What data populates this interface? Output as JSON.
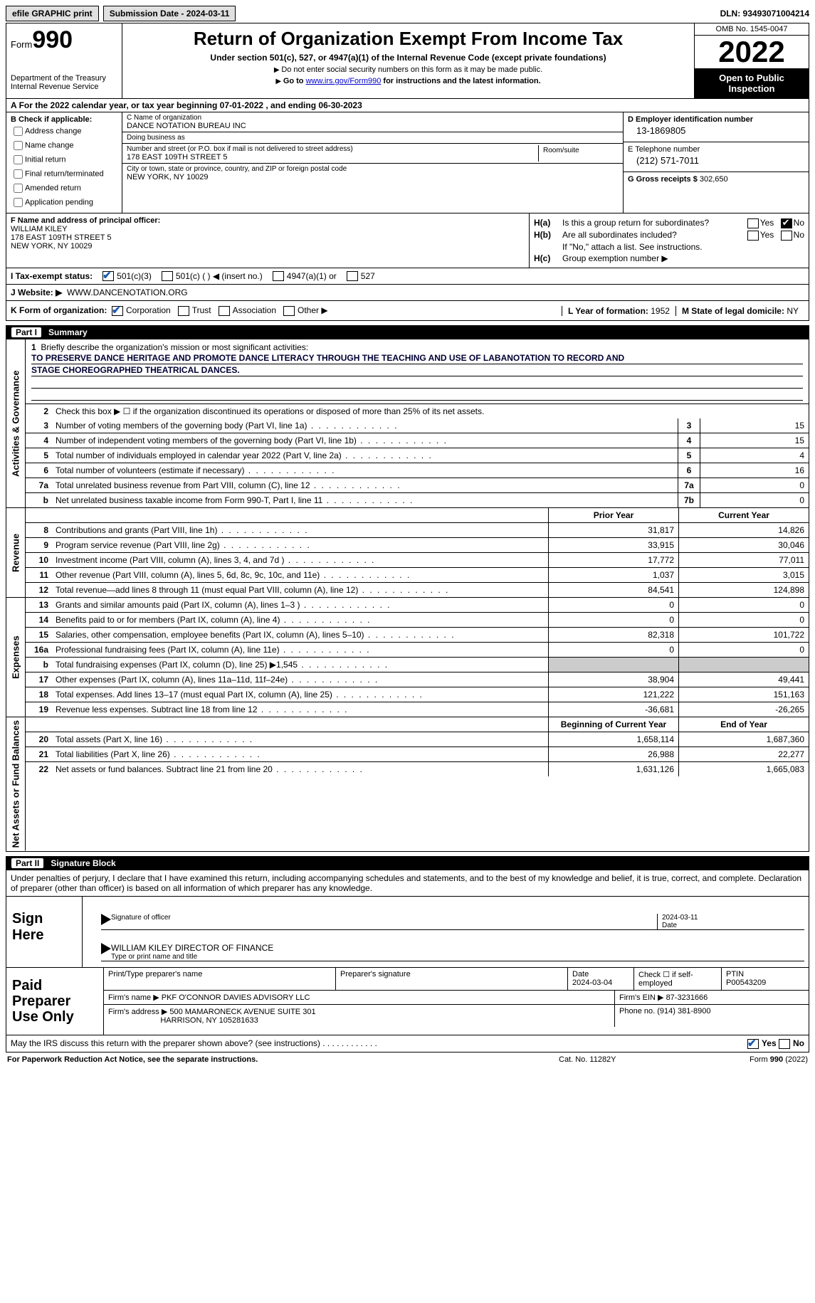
{
  "topbar": {
    "efile": "efile GRAPHIC print",
    "sub_label": "Submission Date - 2024-03-11",
    "dln": "DLN: 93493071004214"
  },
  "header": {
    "form_word": "Form",
    "form_num": "990",
    "dept": "Department of the Treasury",
    "irs": "Internal Revenue Service",
    "title": "Return of Organization Exempt From Income Tax",
    "subtitle": "Under section 501(c), 527, or 4947(a)(1) of the Internal Revenue Code (except private foundations)",
    "note1": "Do not enter social security numbers on this form as it may be made public.",
    "note2_pre": "Go to ",
    "note2_link": "www.irs.gov/Form990",
    "note2_post": " for instructions and the latest information.",
    "omb": "OMB No. 1545-0047",
    "year": "2022",
    "open": "Open to Public Inspection"
  },
  "cal": "For the 2022 calendar year, or tax year beginning 07-01-2022    , and ending 06-30-2023",
  "secB": {
    "label": "B Check if applicable:",
    "opts": [
      "Address change",
      "Name change",
      "Initial return",
      "Final return/terminated",
      "Amended return",
      "Application pending"
    ]
  },
  "secC": {
    "name_lbl": "C Name of organization",
    "name": "DANCE NOTATION BUREAU INC",
    "dba_lbl": "Doing business as",
    "dba": "",
    "street_lbl": "Number and street (or P.O. box if mail is not delivered to street address)",
    "street": "178 EAST 109TH STREET 5",
    "suite_lbl": "Room/suite",
    "city_lbl": "City or town, state or province, country, and ZIP or foreign postal code",
    "city": "NEW YORK, NY  10029"
  },
  "secD": {
    "ein_lbl": "D Employer identification number",
    "ein": "13-1869805",
    "tel_lbl": "E Telephone number",
    "tel": "(212) 571-7011",
    "gross_lbl": "G Gross receipts $",
    "gross": "302,650"
  },
  "secF": {
    "lbl": "F Name and address of principal officer:",
    "name": "WILLIAM KILEY",
    "street": "178 EAST 109TH STREET 5",
    "city": "NEW YORK, NY  10029"
  },
  "secH": {
    "a_lbl": "H(a)",
    "a_txt": "Is this a group return for subordinates?",
    "b_lbl": "H(b)",
    "b_txt": "Are all subordinates included?",
    "b_note": "If \"No,\" attach a list. See instructions.",
    "c_lbl": "H(c)",
    "c_txt": "Group exemption number ▶",
    "yes": "Yes",
    "no": "No"
  },
  "tax": {
    "lbl": "I    Tax-exempt status:",
    "o1": "501(c)(3)",
    "o2": "501(c) (  ) ◀ (insert no.)",
    "o3": "4947(a)(1) or",
    "o4": "527"
  },
  "rowJ": {
    "lbl": "J    Website: ▶",
    "val": "WWW.DANCENOTATION.ORG"
  },
  "rowK": {
    "lbl": "K Form of organization:",
    "o1": "Corporation",
    "o2": "Trust",
    "o3": "Association",
    "o4": "Other ▶",
    "yr_lbl": "L Year of formation:",
    "yr": "1952",
    "st_lbl": "M State of legal domicile:",
    "st": "NY"
  },
  "part1": {
    "num": "Part I",
    "title": "Summary"
  },
  "mission": {
    "intro": "Briefly describe the organization's mission or most significant activities:",
    "line1": "TO PRESERVE DANCE HERITAGE AND PROMOTE DANCE LITERACY THROUGH THE TEACHING AND USE OF LABANOTATION TO RECORD AND",
    "line2": "STAGE CHOREOGRAPHED THEATRICAL DANCES."
  },
  "l2": "Check this box ▶ ☐  if the organization discontinued its operations or disposed of more than 25% of its net assets.",
  "tabs": {
    "gov": "Activities & Governance",
    "rev": "Revenue",
    "exp": "Expenses",
    "net": "Net Assets or Fund Balances"
  },
  "gov": [
    {
      "n": "3",
      "t": "Number of voting members of the governing body (Part VI, line 1a)",
      "b": "3",
      "v": "15"
    },
    {
      "n": "4",
      "t": "Number of independent voting members of the governing body (Part VI, line 1b)",
      "b": "4",
      "v": "15"
    },
    {
      "n": "5",
      "t": "Total number of individuals employed in calendar year 2022 (Part V, line 2a)",
      "b": "5",
      "v": "4"
    },
    {
      "n": "6",
      "t": "Total number of volunteers (estimate if necessary)",
      "b": "6",
      "v": "16"
    },
    {
      "n": "7a",
      "t": "Total unrelated business revenue from Part VIII, column (C), line 12",
      "b": "7a",
      "v": "0"
    },
    {
      "n": "b",
      "t": "Net unrelated business taxable income from Form 990-T, Part I, line 11",
      "b": "7b",
      "v": "0"
    }
  ],
  "yrhdr": {
    "p": "Prior Year",
    "c": "Current Year"
  },
  "rev": [
    {
      "n": "8",
      "t": "Contributions and grants (Part VIII, line 1h)",
      "p": "31,817",
      "c": "14,826"
    },
    {
      "n": "9",
      "t": "Program service revenue (Part VIII, line 2g)",
      "p": "33,915",
      "c": "30,046"
    },
    {
      "n": "10",
      "t": "Investment income (Part VIII, column (A), lines 3, 4, and 7d )",
      "p": "17,772",
      "c": "77,011"
    },
    {
      "n": "11",
      "t": "Other revenue (Part VIII, column (A), lines 5, 6d, 8c, 9c, 10c, and 11e)",
      "p": "1,037",
      "c": "3,015"
    },
    {
      "n": "12",
      "t": "Total revenue—add lines 8 through 11 (must equal Part VIII, column (A), line 12)",
      "p": "84,541",
      "c": "124,898"
    }
  ],
  "exp": [
    {
      "n": "13",
      "t": "Grants and similar amounts paid (Part IX, column (A), lines 1–3 )",
      "p": "0",
      "c": "0"
    },
    {
      "n": "14",
      "t": "Benefits paid to or for members (Part IX, column (A), line 4)",
      "p": "0",
      "c": "0"
    },
    {
      "n": "15",
      "t": "Salaries, other compensation, employee benefits (Part IX, column (A), lines 5–10)",
      "p": "82,318",
      "c": "101,722"
    },
    {
      "n": "16a",
      "t": "Professional fundraising fees (Part IX, column (A), line 11e)",
      "p": "0",
      "c": "0"
    },
    {
      "n": "b",
      "t": "Total fundraising expenses (Part IX, column (D), line 25) ▶1,545",
      "p": "",
      "c": "",
      "g": true
    },
    {
      "n": "17",
      "t": "Other expenses (Part IX, column (A), lines 11a–11d, 11f–24e)",
      "p": "38,904",
      "c": "49,441"
    },
    {
      "n": "18",
      "t": "Total expenses. Add lines 13–17 (must equal Part IX, column (A), line 25)",
      "p": "121,222",
      "c": "151,163"
    },
    {
      "n": "19",
      "t": "Revenue less expenses. Subtract line 18 from line 12",
      "p": "-36,681",
      "c": "-26,265"
    }
  ],
  "nethdr": {
    "p": "Beginning of Current Year",
    "c": "End of Year"
  },
  "net": [
    {
      "n": "20",
      "t": "Total assets (Part X, line 16)",
      "p": "1,658,114",
      "c": "1,687,360"
    },
    {
      "n": "21",
      "t": "Total liabilities (Part X, line 26)",
      "p": "26,988",
      "c": "22,277"
    },
    {
      "n": "22",
      "t": "Net assets or fund balances. Subtract line 21 from line 20",
      "p": "1,631,126",
      "c": "1,665,083"
    }
  ],
  "part2": {
    "num": "Part II",
    "title": "Signature Block"
  },
  "sig": {
    "intro": "Under penalties of perjury, I declare that I have examined this return, including accompanying schedules and statements, and to the best of my knowledge and belief, it is true, correct, and complete. Declaration of preparer (other than officer) is based on all information of which preparer has any knowledge.",
    "here": "Sign Here",
    "sig_lbl": "Signature of officer",
    "date_lbl": "Date",
    "date": "2024-03-11",
    "name": "WILLIAM KILEY DIRECTOR OF FINANCE",
    "name_lbl": "Type or print name and title"
  },
  "prep": {
    "lbl": "Paid Preparer Use Only",
    "h1": "Print/Type preparer's name",
    "h2": "Preparer's signature",
    "h3": "Date",
    "date": "2024-03-04",
    "h4": "Check ☐ if self-employed",
    "h5": "PTIN",
    "ptin": "P00543209",
    "firm_lbl": "Firm's name    ▶",
    "firm": "PKF O'CONNOR DAVIES ADVISORY LLC",
    "ein_lbl": "Firm's EIN ▶",
    "ein": "87-3231666",
    "addr_lbl": "Firm's address ▶",
    "addr1": "500 MAMARONECK AVENUE SUITE 301",
    "addr2": "HARRISON, NY  105281633",
    "ph_lbl": "Phone no.",
    "ph": "(914) 381-8900"
  },
  "discuss": {
    "txt": "May the IRS discuss this return with the preparer shown above? (see instructions)",
    "yes": "Yes",
    "no": "No"
  },
  "footer": {
    "l": "For Paperwork Reduction Act Notice, see the separate instructions.",
    "m": "Cat. No. 11282Y",
    "r": "Form 990 (2022)"
  }
}
